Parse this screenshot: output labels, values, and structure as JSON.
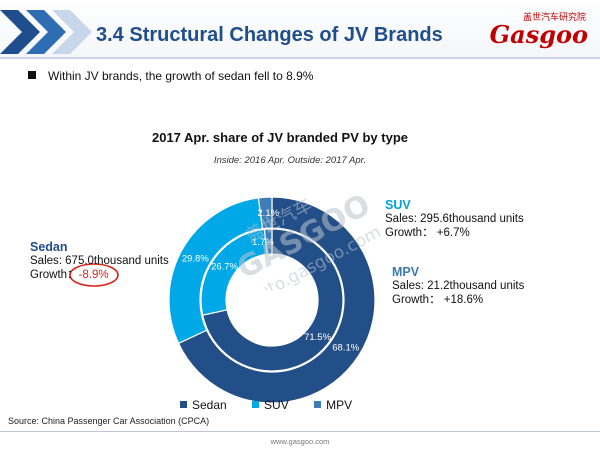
{
  "header": {
    "title": "3.4 Structural Changes of JV Brands",
    "logo_cn": "盖世汽车研究院",
    "logo_text": "Gasgoo"
  },
  "bullet": "Within JV brands, the growth of sedan fell to 8.9%",
  "colors": {
    "sedan": "#234f88",
    "suv": "#00a8e8",
    "mpv": "#3f7db4",
    "title": "#1f4e8c",
    "negative": "#d9261c"
  },
  "chart_data": {
    "type": "pie",
    "title": "2017 Apr. share of JV branded PV by type",
    "subtitle": "Inside: 2016 Apr.  Outside: 2017 Apr.",
    "categories": [
      "Sedan",
      "SUV",
      "MPV"
    ],
    "series": [
      {
        "name": "Inside: 2016 Apr.",
        "values": [
          71.5,
          26.7,
          1.7
        ],
        "labels": [
          "71.5%",
          "26.7%",
          "1.7%"
        ]
      },
      {
        "name": "Outside: 2017 Apr.",
        "values": [
          68.1,
          29.8,
          2.1
        ],
        "labels": [
          "68.1%",
          "29.8%",
          "2.1%"
        ]
      }
    ],
    "legend": [
      "Sedan",
      "SUV",
      "MPV"
    ],
    "legend_position": "bottom"
  },
  "annotations": {
    "sedan": {
      "name": "Sedan",
      "sales": "Sales: 675.0thousand units",
      "growth_label": "Growth：",
      "growth_value": "-8.9%"
    },
    "suv": {
      "name": "SUV",
      "sales": "Sales: 295.6thousand units",
      "growth": "Growth： +6.7%"
    },
    "mpv": {
      "name": "MPV",
      "sales": "Sales: 21.2thousand units",
      "growth": "Growth： +18.6%"
    }
  },
  "source": "Source: China Passenger Car Association (CPCA)",
  "footer": "www.gasgoo.com",
  "watermark": {
    "cn": "盖世汽车",
    "en": "GASGOO",
    "url": "auto.gasgoo.com"
  }
}
